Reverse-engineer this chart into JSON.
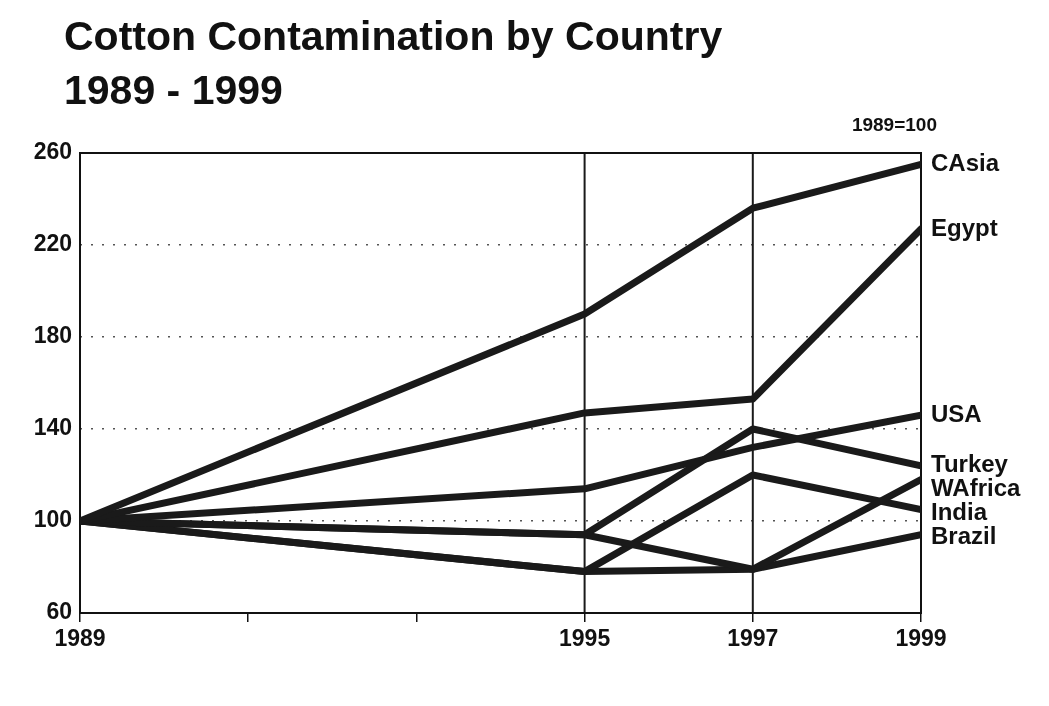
{
  "chart_data": {
    "type": "line",
    "title": "Cotton Contamination by Country",
    "subtitle": "1989 - 1999",
    "annotations": [
      "1989=100"
    ],
    "x": [
      1989,
      1995,
      1997,
      1999
    ],
    "series": [
      {
        "name": "CAsia",
        "color": "#1a1a1a",
        "values": [
          100,
          190,
          236,
          255
        ]
      },
      {
        "name": "Egypt",
        "color": "#1a1a1a",
        "values": [
          100,
          147,
          153,
          227
        ]
      },
      {
        "name": "USA",
        "color": "#1a1a1a",
        "values": [
          100,
          114,
          132,
          146
        ]
      },
      {
        "name": "Turkey",
        "color": "#1a1a1a",
        "values": [
          100,
          94,
          140,
          124
        ]
      },
      {
        "name": "WAfrica",
        "color": "#1a1a1a",
        "values": [
          100,
          94,
          79,
          118
        ]
      },
      {
        "name": "India",
        "color": "#1a1a1a",
        "values": [
          100,
          78,
          120,
          105
        ]
      },
      {
        "name": "Brazil",
        "color": "#1a1a1a",
        "values": [
          100,
          78,
          79,
          94
        ]
      }
    ],
    "xlim": [
      1989,
      1999
    ],
    "xticks": [
      1989,
      {
        "value": 1991,
        "label": null
      },
      {
        "value": 1993,
        "label": null
      },
      1995,
      1997,
      1999
    ],
    "ylim": [
      60,
      260
    ],
    "yticks": [
      60,
      100,
      140,
      180,
      220,
      260
    ],
    "ref_lines": [
      {
        "axis": "x",
        "value": 1995,
        "color": "#1a1a1a"
      },
      {
        "axis": "x",
        "value": 1997,
        "color": "#1a1a1a"
      }
    ],
    "grid": "y",
    "legend": false,
    "marker": "none",
    "line_style": "solid"
  }
}
